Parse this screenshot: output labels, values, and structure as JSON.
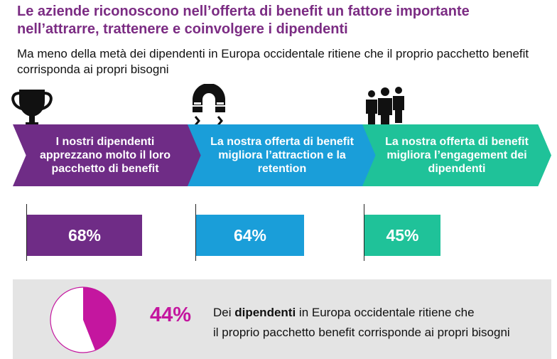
{
  "title": "Le aziende riconoscono nell’offerta di benefit un fattore importante nell’attrarre, trattenere e coinvolgere i dipendenti",
  "subtitle": "Ma meno della metà dei dipendenti in Europa occidentale ritiene che il proprio pacchetto benefit corrisponda ai propri bisogni",
  "colors": {
    "purple": "#6f2c86",
    "blue": "#1a9ed9",
    "green": "#1fc299",
    "magenta": "#c4169f",
    "title": "#7b2c83"
  },
  "icons": [
    "trophy-icon",
    "magnet-icon",
    "people-icon"
  ],
  "chart_data": [
    {
      "type": "bar",
      "categories": [
        "I nostri dipendenti apprezzano molto il loro pacchetto di benefit",
        "La nostra offerta di benefit migliora l’attraction e la retention",
        "La nostra offerta di benefit migliora l’engagement dei dipendenti"
      ],
      "values": [
        68,
        64,
        45
      ],
      "value_labels": [
        "68%",
        "64%",
        "45%"
      ],
      "ylim": [
        0,
        100
      ],
      "orientation": "horizontal",
      "grid": false
    },
    {
      "type": "pie",
      "values": [
        44,
        56
      ],
      "value_label": "44%",
      "colors": [
        "#c4169f",
        "#ffffff"
      ]
    }
  ],
  "panel": {
    "pct": "44%",
    "line1_pre": "Dei ",
    "line1_bold": "dipendenti",
    "line1_post": " in  Europa occidentale ritiene che",
    "line2": "il proprio pacchetto benefit corrisponde ai propri bisogni"
  }
}
